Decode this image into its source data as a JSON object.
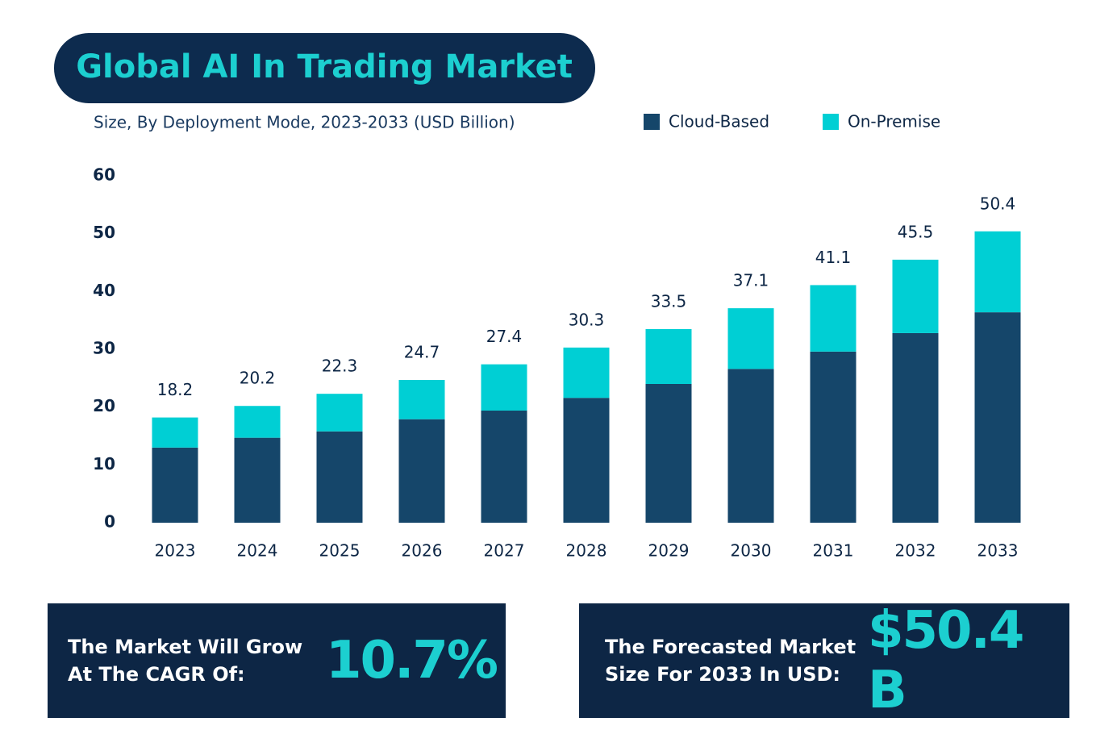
{
  "chart_data": {
    "type": "stacked_bar",
    "title": "Global AI In Trading Market",
    "subtitle": "Size, By Deployment Mode, 2023-2033 (USD Billion)",
    "categories": [
      "2023",
      "2024",
      "2025",
      "2026",
      "2027",
      "2028",
      "2029",
      "2030",
      "2031",
      "2032",
      "2033"
    ],
    "series": [
      {
        "name": "Cloud-Based",
        "color": "#15466a",
        "values": [
          13.0,
          14.7,
          15.8,
          17.9,
          19.4,
          21.6,
          24.0,
          26.6,
          29.6,
          32.8,
          36.4
        ]
      },
      {
        "name": "On-Premise",
        "color": "#00cfd4",
        "values": [
          5.2,
          5.5,
          6.5,
          6.8,
          8.0,
          8.7,
          9.5,
          10.5,
          11.5,
          12.7,
          14.0
        ]
      }
    ],
    "totals": [
      18.2,
      20.2,
      22.3,
      24.7,
      27.4,
      30.3,
      33.5,
      37.1,
      41.1,
      45.5,
      50.4
    ],
    "ylim": [
      0,
      60
    ],
    "yticks": [
      0,
      10,
      20,
      30,
      40,
      50,
      60
    ],
    "grid": false
  },
  "callouts": [
    {
      "text": "The Market Will Grow At The CAGR Of:",
      "value": "10.7%"
    },
    {
      "text": "The Forecasted Market Size For 2033 In USD:",
      "value": "$50.4 B"
    }
  ]
}
